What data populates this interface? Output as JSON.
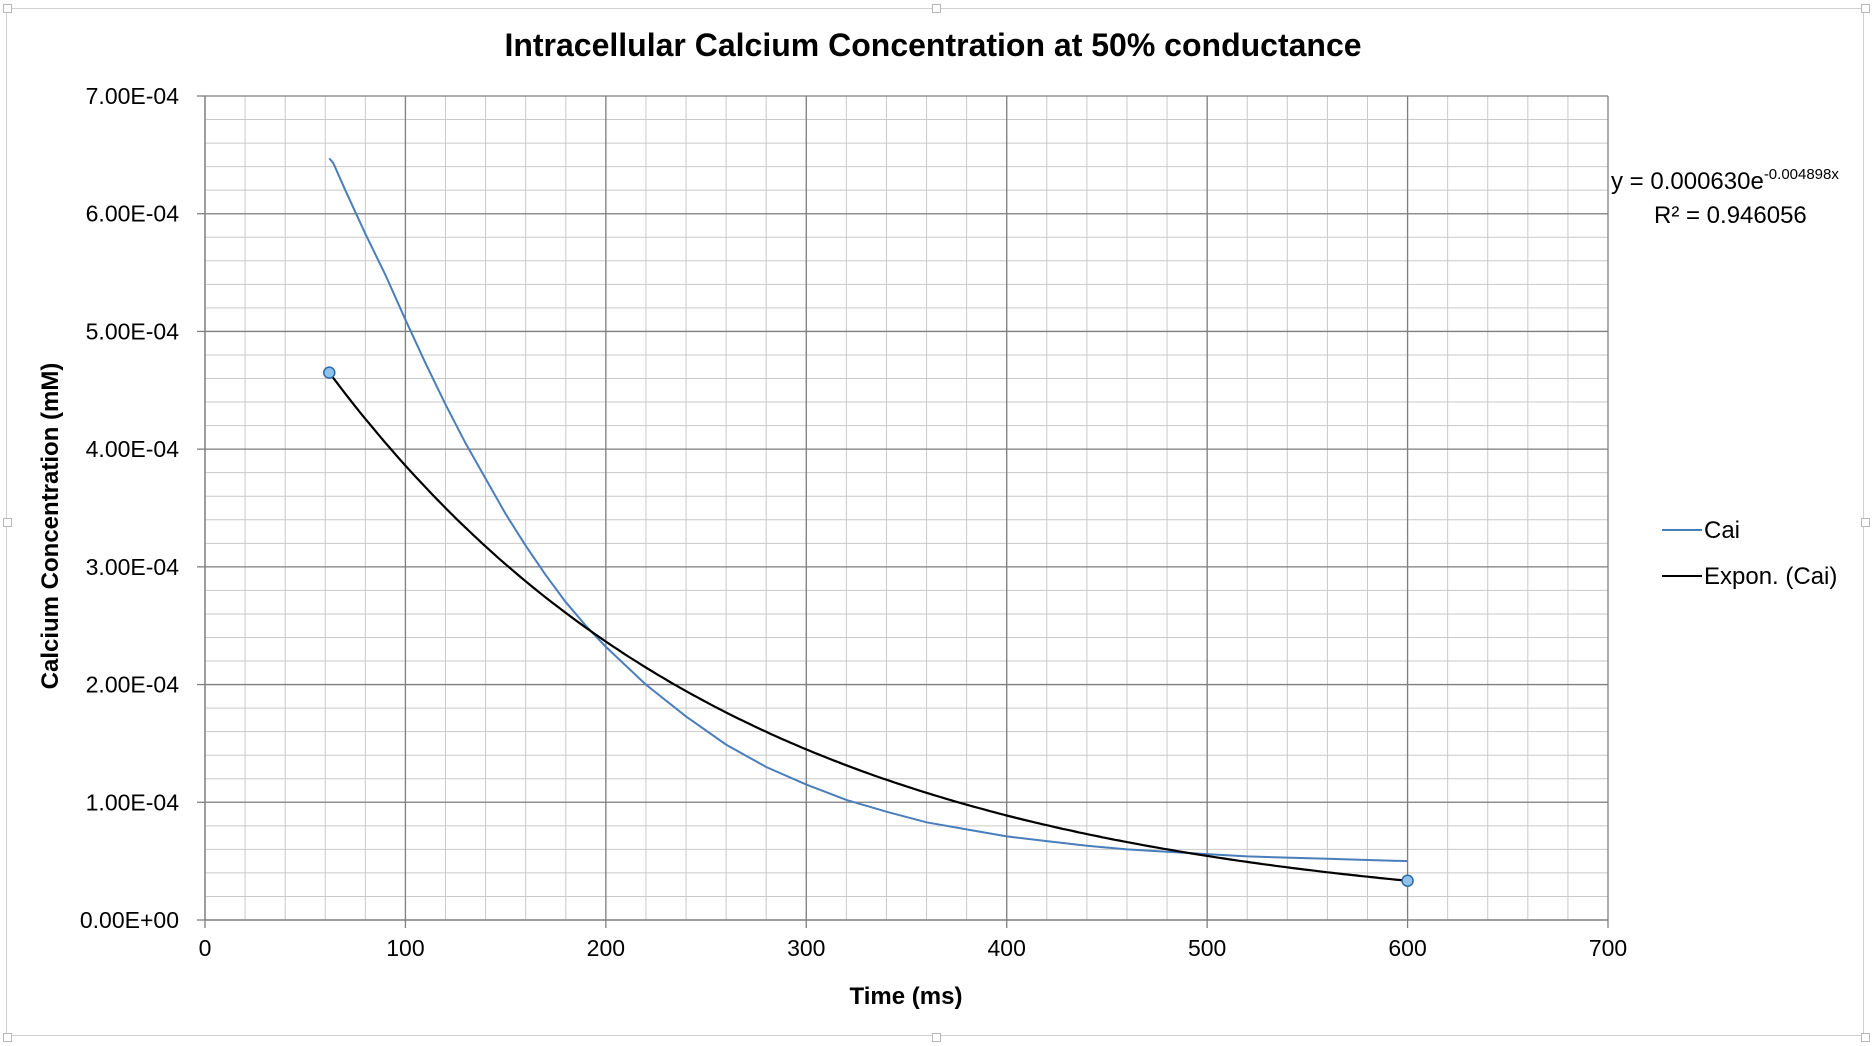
{
  "chart_data": {
    "type": "line",
    "title": "Intracellular Calcium Concentration at 50% conductance",
    "xlabel": "Time (ms)",
    "ylabel": "Calcium Concentration (mM)",
    "xlim": [
      0,
      700
    ],
    "ylim": [
      0,
      0.0007
    ],
    "x_ticks": [
      "0",
      "100",
      "200",
      "300",
      "400",
      "500",
      "600",
      "700"
    ],
    "y_ticks": [
      "0.00E+00",
      "1.00E-04",
      "2.00E-04",
      "3.00E-04",
      "4.00E-04",
      "5.00E-04",
      "6.00E-04",
      "7.00E-04"
    ],
    "grid": "major and minor",
    "legend_position": "right",
    "series": [
      {
        "name": "Cai",
        "color": "#4a7ebb",
        "x": [
          62,
          64,
          70,
          80,
          90,
          100,
          110,
          120,
          130,
          140,
          150,
          160,
          170,
          180,
          190,
          200,
          220,
          240,
          260,
          280,
          300,
          320,
          340,
          360,
          380,
          400,
          420,
          440,
          460,
          480,
          500,
          520,
          540,
          560,
          580,
          600
        ],
        "y": [
          0.000647,
          0.000643,
          0.00062,
          0.000583,
          0.000548,
          0.00051,
          0.000473,
          0.000438,
          0.000405,
          0.000375,
          0.000345,
          0.000318,
          0.000293,
          0.00027,
          0.00025,
          0.000232,
          0.0002,
          0.000173,
          0.000149,
          0.00013,
          0.000115,
          0.000102,
          9.2e-05,
          8.3e-05,
          7.7e-05,
          7.1e-05,
          6.7e-05,
          6.3e-05,
          6e-05,
          5.8e-05,
          5.6e-05,
          5.4e-05,
          5.3e-05,
          5.2e-05,
          5.1e-05,
          5e-05
        ]
      },
      {
        "name": "Expon. (Cai)",
        "color": "#000000",
        "type": "trendline-exponential",
        "equation": {
          "a": 0.00063,
          "b": -0.004898,
          "x_start": 62,
          "x_end": 600
        }
      }
    ],
    "trendline_label": {
      "eq_prefix": "y = 0.000630e",
      "eq_exponent": "-0.004898x",
      "r_squared": "R² = 0.946056"
    }
  },
  "legend": [
    {
      "label": "Cai",
      "color": "#4a7ebb"
    },
    {
      "label": "Expon. (Cai)",
      "color": "#000000"
    }
  ]
}
